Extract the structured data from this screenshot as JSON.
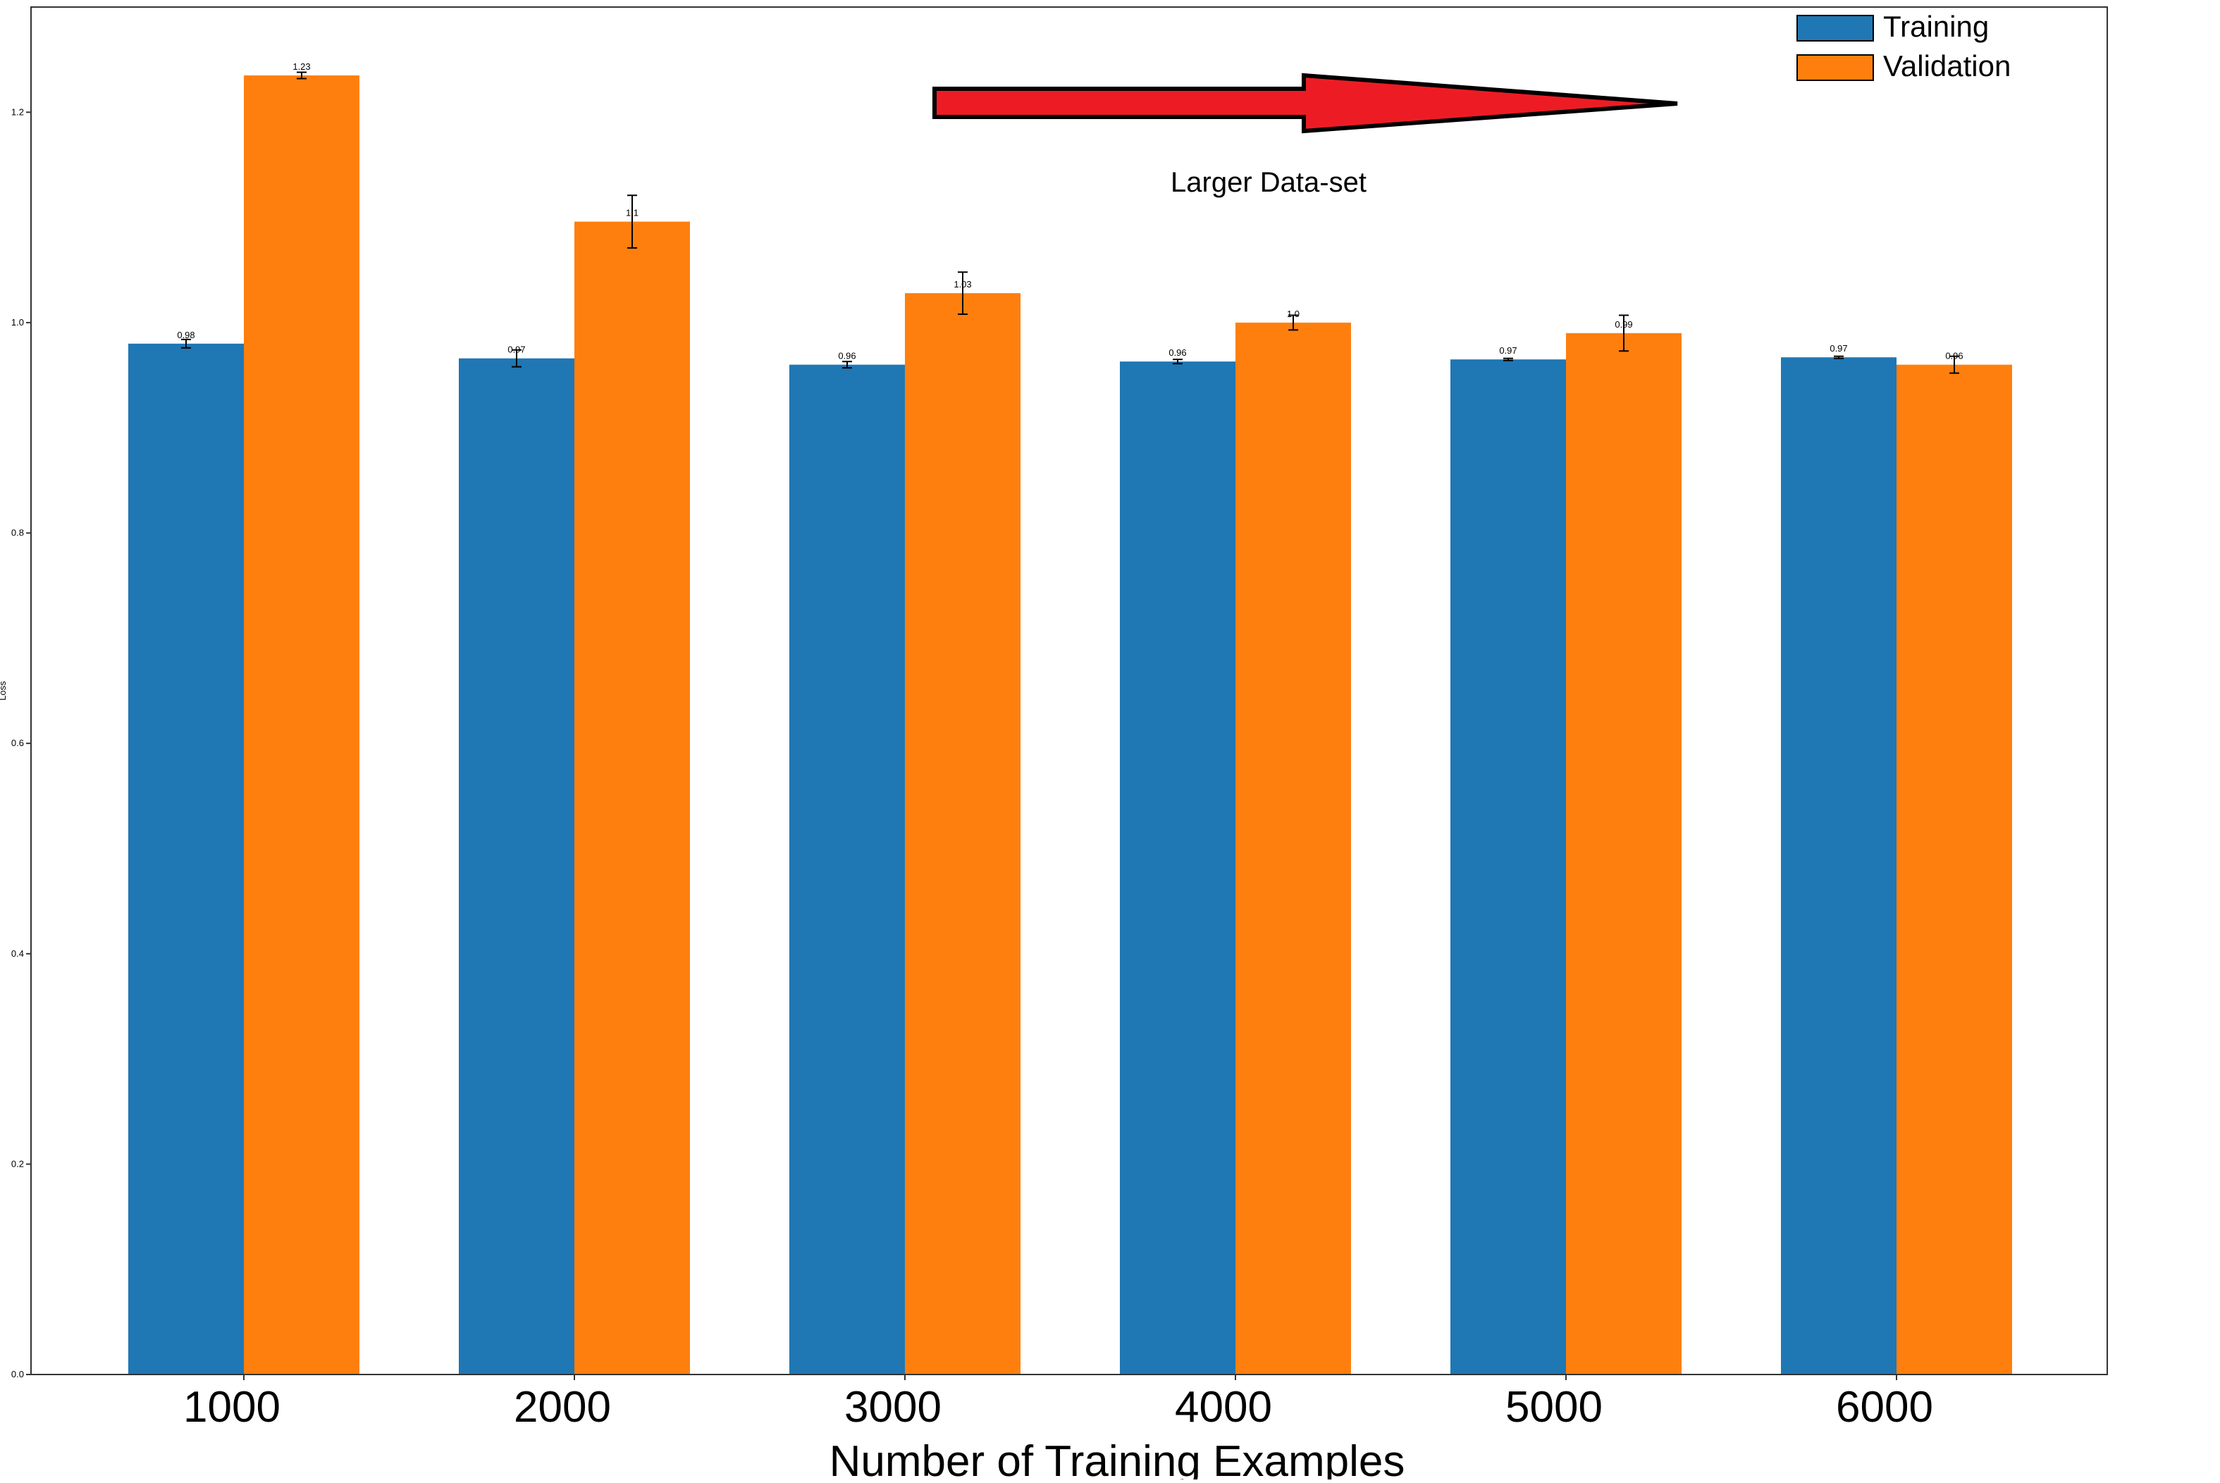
{
  "chart_data": {
    "type": "bar",
    "title": "",
    "xlabel": "Number of Training Examples",
    "ylabel": "Loss",
    "categories": [
      "1000",
      "2000",
      "3000",
      "4000",
      "5000",
      "6000"
    ],
    "ylim": [
      0,
      1.3
    ],
    "yticks": [
      "0.0",
      "0.2",
      "0.4",
      "0.6",
      "0.8",
      "1.0",
      "1.2"
    ],
    "grid": false,
    "legend_position": "top-right",
    "series": [
      {
        "name": "Training",
        "color": "#1f77b4",
        "values": [
          0.98,
          0.966,
          0.96,
          0.963,
          0.965,
          0.967
        ],
        "errors": [
          0.004,
          0.008,
          0.003,
          0.002,
          0.001,
          0.001
        ],
        "labels": [
          "0.98",
          "0.97",
          "0.96",
          "0.96",
          "0.97",
          "0.97"
        ]
      },
      {
        "name": "Validation",
        "color": "#ff7f0e",
        "values": [
          1.235,
          1.096,
          1.028,
          1.0,
          0.99,
          0.96
        ],
        "errors": [
          0.003,
          0.025,
          0.02,
          0.007,
          0.017,
          0.008
        ],
        "labels": [
          "1.23",
          "1.1",
          "1.03",
          "1.0",
          "0.99",
          "0.96"
        ]
      }
    ],
    "annotation": {
      "text": "Larger Data-set",
      "arrow_color": "#ed1c24",
      "arrow_direction": "right"
    }
  }
}
